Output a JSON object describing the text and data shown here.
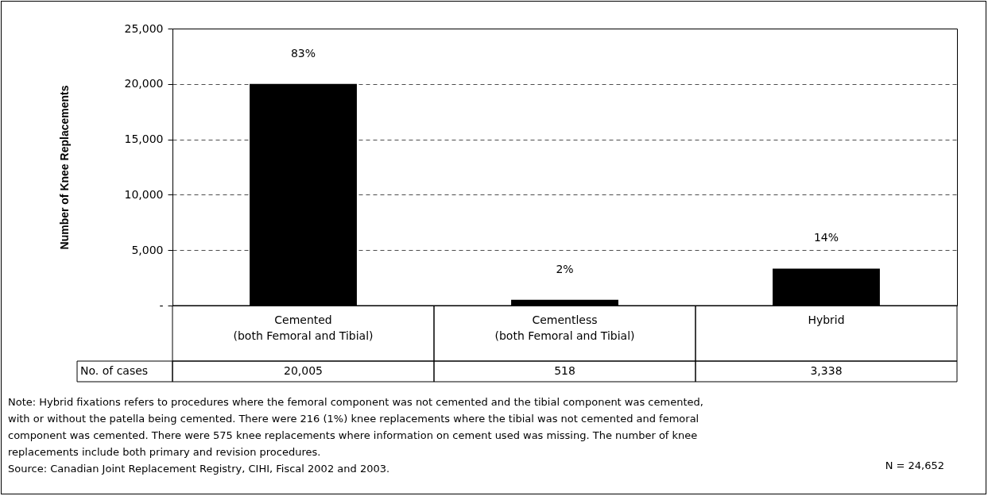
{
  "chart_data": {
    "type": "bar",
    "ylabel": "Number of Knee Replacements",
    "categories": [
      "Cemented\n(both Femoral and Tibial)",
      "Cementless\n(both Femoral and Tibial)",
      "Hybrid"
    ],
    "values": [
      20005,
      518,
      3338
    ],
    "color": "#000000",
    "value_labels": [
      "20,005",
      "518",
      "3,338"
    ],
    "ylim": [
      0,
      25000
    ],
    "yticks": [
      {
        "value": 0,
        "label": "-"
      },
      {
        "value": 5000,
        "label": "5,000"
      },
      {
        "value": 10000,
        "label": "10,000"
      },
      {
        "value": 15000,
        "label": "15,000"
      },
      {
        "value": 20000,
        "label": "20,000"
      },
      {
        "value": 25000,
        "label": "25,000"
      }
    ],
    "grid": "y",
    "line_style": "dashed",
    "annotations": [
      {
        "text": "83%",
        "x": "Cemented\n(both Femoral and Tibial)",
        "y": 20005
      },
      {
        "text": "2%",
        "x": "Cementless\n(both Femoral and Tibial)",
        "y": 518
      },
      {
        "text": "14%",
        "x": "Hybrid",
        "y": 3338
      },
      "No. of cases",
      "Note: Hybrid fixations refers to procedures where the femoral component was not cemented and the tibial component was cemented, with or without the patella being cemented.  There were 216 (1%) knee replacements where the tibial was not cemented and femoral component was cemented. There were 575 knee replacements where information on cement used was missing. The number of knee replacements include both primary and revision procedures.",
      "Source: Canadian Joint Replacement Registry, CIHI, Fiscal 2002 and 2003.",
      "N = 24,652"
    ]
  }
}
